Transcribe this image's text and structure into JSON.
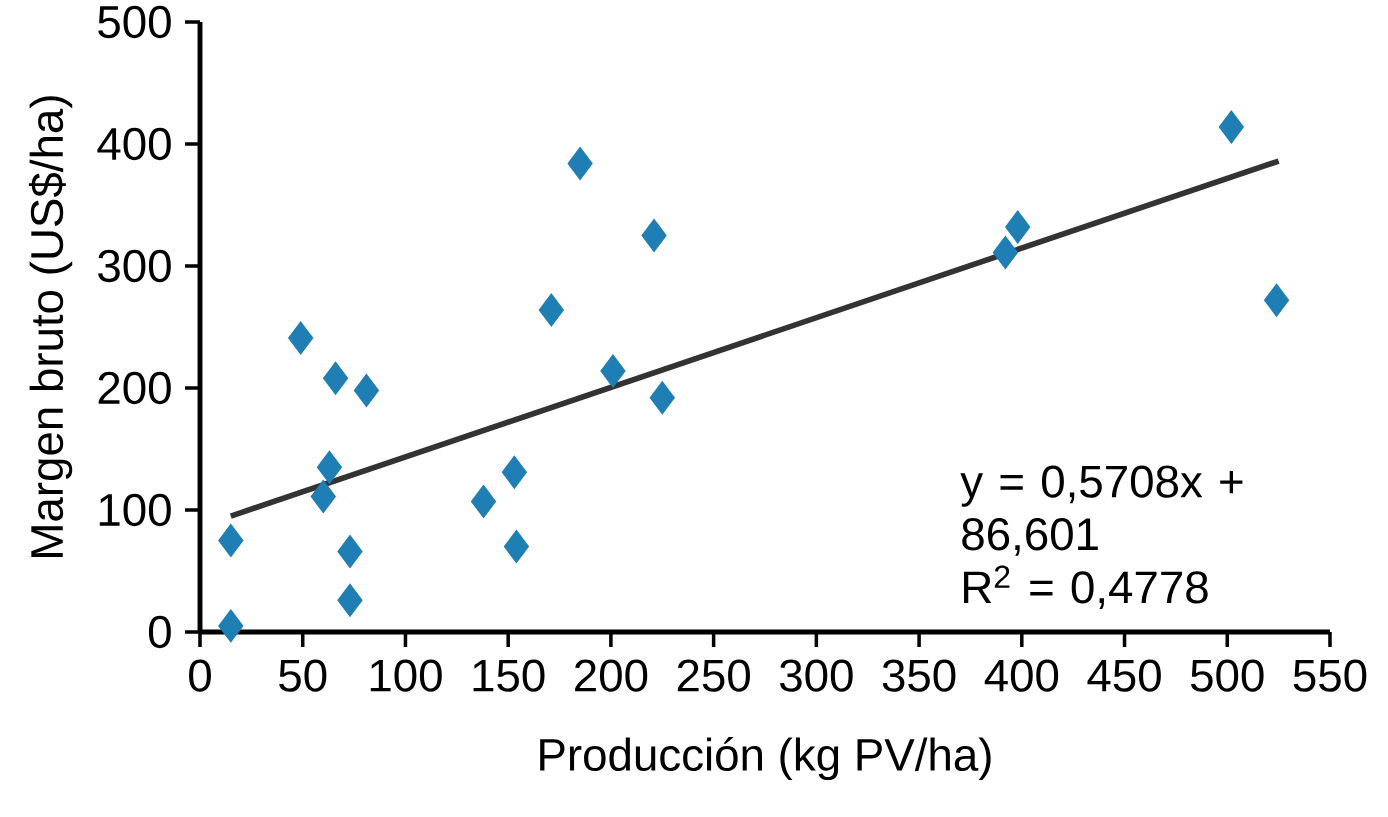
{
  "chart_data": {
    "type": "scatter",
    "xlabel": "Producción  (kg PV/ha)",
    "ylabel": "Margen bruto (US$/ha)",
    "series": [
      {
        "color": "#1f7fb4",
        "marker": "diamond",
        "x": [
          15,
          15,
          49,
          66,
          81,
          63,
          60,
          73,
          73,
          138,
          153,
          154,
          171,
          185,
          201,
          221,
          225,
          392,
          398,
          502,
          524
        ],
        "values": [
          5,
          75,
          241,
          208,
          198,
          135,
          111,
          66,
          26,
          107,
          131,
          70,
          264,
          384,
          214,
          325,
          192,
          311,
          332,
          414,
          272
        ]
      },
      {
        "type": "line",
        "color": "#333333",
        "marker": "none",
        "x": [
          15,
          525
        ],
        "values": [
          95,
          386
        ]
      }
    ],
    "annotations": [
      "y = 0,5708x + 86,601",
      "R$^{2}$ = 0,4778"
    ],
    "xlim": [
      0,
      550
    ],
    "ylim": [
      0,
      500
    ],
    "xticks": [
      0,
      50,
      100,
      150,
      200,
      250,
      300,
      350,
      400,
      450,
      500,
      550
    ],
    "yticks": [
      0,
      100,
      200,
      300,
      400,
      500
    ]
  }
}
